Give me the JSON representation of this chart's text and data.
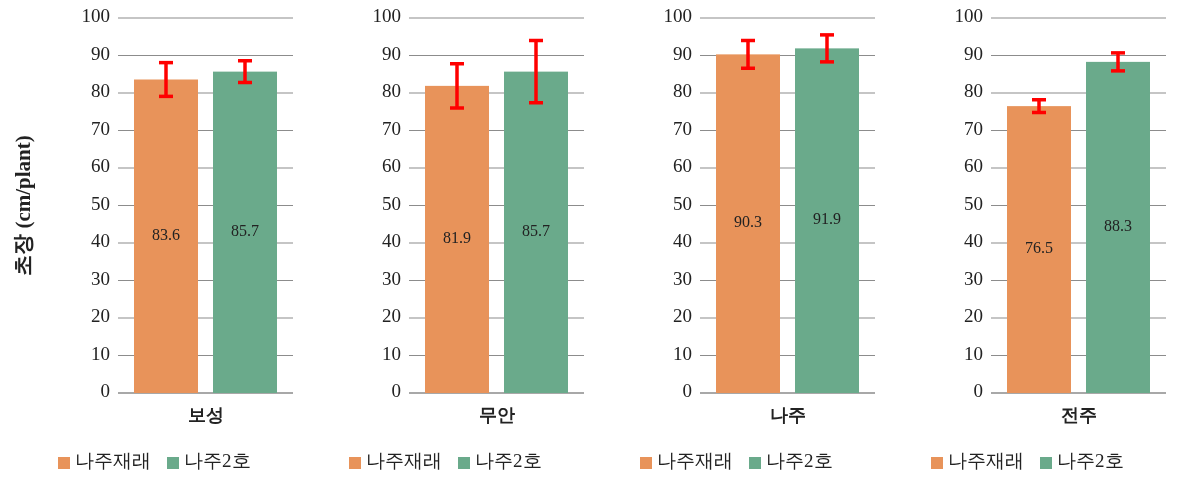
{
  "chart_data": [
    {
      "type": "bar",
      "ylabel": "초장 (cm/plant)",
      "categories": [
        "보성"
      ],
      "ylim": [
        0,
        100
      ],
      "yticks": [
        0,
        10,
        20,
        30,
        40,
        50,
        60,
        70,
        80,
        90,
        100
      ],
      "grid": "y",
      "legend": "bottom",
      "data_labels": true,
      "series": [
        {
          "name": "나주재래",
          "color": "#e8935a",
          "values": [
            83.6
          ],
          "errors": [
            4.5
          ]
        },
        {
          "name": "나주2호",
          "color": "#6aaa8b",
          "values": [
            85.7
          ],
          "errors": [
            2.9
          ]
        }
      ]
    },
    {
      "type": "bar",
      "categories": [
        "무안"
      ],
      "ylim": [
        0,
        100
      ],
      "yticks": [
        0,
        10,
        20,
        30,
        40,
        50,
        60,
        70,
        80,
        90,
        100
      ],
      "grid": "y",
      "legend": "bottom",
      "data_labels": true,
      "series": [
        {
          "name": "나주재래",
          "color": "#e8935a",
          "values": [
            81.9
          ],
          "errors": [
            5.9
          ]
        },
        {
          "name": "나주2호",
          "color": "#6aaa8b",
          "values": [
            85.7
          ],
          "errors": [
            8.3
          ]
        }
      ]
    },
    {
      "type": "bar",
      "categories": [
        "나주"
      ],
      "ylim": [
        0,
        100
      ],
      "yticks": [
        0,
        10,
        20,
        30,
        40,
        50,
        60,
        70,
        80,
        90,
        100
      ],
      "grid": "y",
      "legend": "bottom",
      "data_labels": true,
      "series": [
        {
          "name": "나주재래",
          "color": "#e8935a",
          "values": [
            90.3
          ],
          "errors": [
            3.7
          ]
        },
        {
          "name": "나주2호",
          "color": "#6aaa8b",
          "values": [
            91.9
          ],
          "errors": [
            3.6
          ]
        }
      ]
    },
    {
      "type": "bar",
      "categories": [
        "전주"
      ],
      "ylim": [
        0,
        100
      ],
      "yticks": [
        0,
        10,
        20,
        30,
        40,
        50,
        60,
        70,
        80,
        90,
        100
      ],
      "grid": "y",
      "legend": "bottom",
      "data_labels": true,
      "series": [
        {
          "name": "나주재래",
          "color": "#e8935a",
          "values": [
            76.5
          ],
          "errors": [
            1.7
          ]
        },
        {
          "name": "나주2호",
          "color": "#6aaa8b",
          "values": [
            88.3
          ],
          "errors": [
            2.4
          ]
        }
      ]
    }
  ]
}
